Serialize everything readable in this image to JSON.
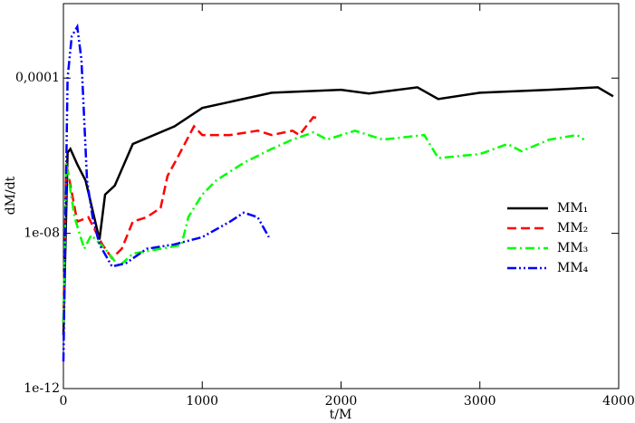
{
  "chart_data": {
    "type": "line",
    "x_label": "t/M",
    "y_label": "dM/dt",
    "xlim": [
      0,
      4000
    ],
    "xticks": [
      0,
      1000,
      2000,
      3000,
      4000
    ],
    "ylim": [
      1e-12,
      0.0083
    ],
    "log_y": true,
    "yticks": [
      {
        "value": 1e-12,
        "label": "1e-12"
      },
      {
        "value": 1e-08,
        "label": "1e-08"
      },
      {
        "value": 0.0001,
        "label": "0,0001"
      }
    ],
    "legend": "right",
    "series": [
      {
        "name": "MM₁",
        "color": "#000000",
        "dash": "solid",
        "x": [
          0,
          30,
          50,
          100,
          160,
          260,
          300,
          370,
          500,
          800,
          1000,
          1500,
          2000,
          2200,
          2550,
          2700,
          3000,
          3500,
          3850,
          3960
        ],
        "values": [
          2.4e-11,
          1.2e-06,
          1.5e-06,
          6e-07,
          2.3e-07,
          6.9e-09,
          1e-07,
          1.7e-07,
          2e-06,
          5.7e-06,
          1.7e-05,
          4.2e-05,
          5e-05,
          4e-05,
          5.8e-05,
          2.9e-05,
          4.2e-05,
          5e-05,
          5.8e-05,
          3.4e-05
        ]
      },
      {
        "name": "MM₂",
        "color": "#ff0000",
        "dash": "dashed",
        "x": [
          0,
          20,
          100,
          180,
          280,
          350,
          420,
          500,
          600,
          700,
          750,
          820,
          940,
          1000,
          1200,
          1400,
          1500,
          1650,
          1700,
          1800,
          1850
        ],
        "values": [
          5e-11,
          6.6e-07,
          2e-08,
          2.6e-08,
          5.2e-09,
          2.3e-09,
          4e-09,
          2e-08,
          2.6e-08,
          4.5e-08,
          3e-07,
          8.7e-07,
          5.7e-06,
          3.4e-06,
          3.4e-06,
          4.4e-06,
          3.4e-06,
          4.4e-06,
          3.4e-06,
          9.8e-06,
          9e-06
        ]
      },
      {
        "name": "MM₃",
        "color": "#00ff00",
        "dash": "dashdot",
        "x": [
          0,
          20,
          80,
          150,
          200,
          300,
          400,
          500,
          700,
          850,
          900,
          1000,
          1100,
          1300,
          1500,
          1650,
          1800,
          1900,
          2100,
          2300,
          2600,
          2700,
          3000,
          3200,
          3300,
          3500,
          3700,
          3750
        ],
        "values": [
          5e-11,
          6.6e-07,
          2.6e-08,
          4e-09,
          9e-09,
          4e-09,
          1.4e-09,
          3e-09,
          4e-09,
          5e-09,
          2.6e-08,
          1e-07,
          2.3e-07,
          6.6e-07,
          1.5e-06,
          2.6e-06,
          4e-06,
          2.6e-06,
          4.4e-06,
          2.6e-06,
          3.4e-06,
          8.7e-07,
          1.1e-06,
          2e-06,
          1.3e-06,
          2.6e-06,
          3.4e-06,
          2.6e-06
        ]
      },
      {
        "name": "MM₄",
        "color": "#0000ff",
        "dash": "dashdotdot",
        "x": [
          0,
          30,
          60,
          100,
          130,
          170,
          210,
          260,
          350,
          450,
          600,
          800,
          1000,
          1200,
          1300,
          1400,
          1480
        ],
        "values": [
          5e-12,
          0.0001,
          0.0012,
          0.0021,
          0.0003,
          2.3e-07,
          2.6e-08,
          5.2e-09,
          1.4e-09,
          1.7e-09,
          4e-09,
          5.2e-09,
          8e-09,
          2e-08,
          3.4e-08,
          2.6e-08,
          8e-09
        ]
      }
    ]
  }
}
